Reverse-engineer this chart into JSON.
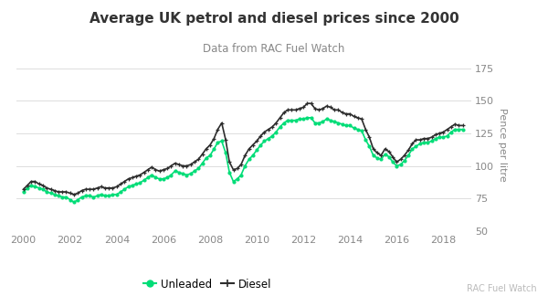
{
  "title": "Average UK petrol and diesel prices since 2000",
  "subtitle": "Data from RAC Fuel Watch",
  "ylabel": "Pence per litre",
  "watermark": "RAC Fuel Watch",
  "ylim": [
    50,
    182
  ],
  "yticks": [
    50,
    75,
    100,
    125,
    150,
    175
  ],
  "xlim": [
    1999.7,
    2019.2
  ],
  "xticks": [
    2000,
    2002,
    2004,
    2006,
    2008,
    2010,
    2012,
    2014,
    2016,
    2018
  ],
  "bg_color": "#ffffff",
  "grid_color": "#dddddd",
  "unleaded_color": "#00dd77",
  "diesel_color": "#2d2d2d",
  "unleaded_data": [
    [
      2000.0,
      80
    ],
    [
      2000.17,
      83
    ],
    [
      2000.33,
      85
    ],
    [
      2000.5,
      84
    ],
    [
      2000.67,
      83
    ],
    [
      2000.83,
      82
    ],
    [
      2001.0,
      80
    ],
    [
      2001.17,
      79
    ],
    [
      2001.33,
      78
    ],
    [
      2001.5,
      77
    ],
    [
      2001.67,
      76
    ],
    [
      2001.83,
      76
    ],
    [
      2002.0,
      74
    ],
    [
      2002.17,
      72
    ],
    [
      2002.33,
      74
    ],
    [
      2002.5,
      76
    ],
    [
      2002.67,
      77
    ],
    [
      2002.83,
      77
    ],
    [
      2003.0,
      76
    ],
    [
      2003.17,
      77
    ],
    [
      2003.33,
      78
    ],
    [
      2003.5,
      77
    ],
    [
      2003.67,
      77
    ],
    [
      2003.83,
      78
    ],
    [
      2004.0,
      78
    ],
    [
      2004.17,
      80
    ],
    [
      2004.33,
      82
    ],
    [
      2004.5,
      84
    ],
    [
      2004.67,
      85
    ],
    [
      2004.83,
      86
    ],
    [
      2005.0,
      87
    ],
    [
      2005.17,
      89
    ],
    [
      2005.33,
      91
    ],
    [
      2005.5,
      93
    ],
    [
      2005.67,
      91
    ],
    [
      2005.83,
      90
    ],
    [
      2006.0,
      90
    ],
    [
      2006.17,
      91
    ],
    [
      2006.33,
      93
    ],
    [
      2006.5,
      96
    ],
    [
      2006.67,
      95
    ],
    [
      2006.83,
      94
    ],
    [
      2007.0,
      93
    ],
    [
      2007.17,
      94
    ],
    [
      2007.33,
      96
    ],
    [
      2007.5,
      98
    ],
    [
      2007.67,
      102
    ],
    [
      2007.83,
      106
    ],
    [
      2008.0,
      108
    ],
    [
      2008.17,
      113
    ],
    [
      2008.33,
      118
    ],
    [
      2008.5,
      119
    ],
    [
      2008.67,
      110
    ],
    [
      2008.83,
      95
    ],
    [
      2009.0,
      88
    ],
    [
      2009.17,
      90
    ],
    [
      2009.33,
      93
    ],
    [
      2009.5,
      100
    ],
    [
      2009.67,
      105
    ],
    [
      2009.83,
      108
    ],
    [
      2010.0,
      112
    ],
    [
      2010.17,
      116
    ],
    [
      2010.33,
      119
    ],
    [
      2010.5,
      121
    ],
    [
      2010.67,
      123
    ],
    [
      2010.83,
      126
    ],
    [
      2011.0,
      130
    ],
    [
      2011.17,
      133
    ],
    [
      2011.33,
      135
    ],
    [
      2011.5,
      135
    ],
    [
      2011.67,
      135
    ],
    [
      2011.83,
      136
    ],
    [
      2012.0,
      136
    ],
    [
      2012.17,
      137
    ],
    [
      2012.33,
      137
    ],
    [
      2012.5,
      133
    ],
    [
      2012.67,
      133
    ],
    [
      2012.83,
      134
    ],
    [
      2013.0,
      136
    ],
    [
      2013.17,
      135
    ],
    [
      2013.33,
      134
    ],
    [
      2013.5,
      133
    ],
    [
      2013.67,
      132
    ],
    [
      2013.83,
      131
    ],
    [
      2014.0,
      131
    ],
    [
      2014.17,
      129
    ],
    [
      2014.33,
      128
    ],
    [
      2014.5,
      127
    ],
    [
      2014.67,
      120
    ],
    [
      2014.83,
      115
    ],
    [
      2015.0,
      108
    ],
    [
      2015.17,
      106
    ],
    [
      2015.33,
      105
    ],
    [
      2015.5,
      109
    ],
    [
      2015.67,
      107
    ],
    [
      2015.83,
      103
    ],
    [
      2016.0,
      100
    ],
    [
      2016.17,
      101
    ],
    [
      2016.33,
      104
    ],
    [
      2016.5,
      108
    ],
    [
      2016.67,
      113
    ],
    [
      2016.83,
      115
    ],
    [
      2017.0,
      117
    ],
    [
      2017.17,
      118
    ],
    [
      2017.33,
      118
    ],
    [
      2017.5,
      119
    ],
    [
      2017.67,
      121
    ],
    [
      2017.83,
      122
    ],
    [
      2018.0,
      122
    ],
    [
      2018.17,
      123
    ],
    [
      2018.33,
      126
    ],
    [
      2018.5,
      128
    ],
    [
      2018.67,
      128
    ],
    [
      2018.83,
      128
    ]
  ],
  "diesel_data": [
    [
      2000.0,
      82
    ],
    [
      2000.17,
      85
    ],
    [
      2000.33,
      88
    ],
    [
      2000.5,
      88
    ],
    [
      2000.67,
      86
    ],
    [
      2000.83,
      85
    ],
    [
      2001.0,
      83
    ],
    [
      2001.17,
      82
    ],
    [
      2001.33,
      81
    ],
    [
      2001.5,
      80
    ],
    [
      2001.67,
      80
    ],
    [
      2001.83,
      80
    ],
    [
      2002.0,
      79
    ],
    [
      2002.17,
      78
    ],
    [
      2002.33,
      79
    ],
    [
      2002.5,
      81
    ],
    [
      2002.67,
      82
    ],
    [
      2002.83,
      82
    ],
    [
      2003.0,
      82
    ],
    [
      2003.17,
      83
    ],
    [
      2003.33,
      84
    ],
    [
      2003.5,
      83
    ],
    [
      2003.67,
      83
    ],
    [
      2003.83,
      83
    ],
    [
      2004.0,
      84
    ],
    [
      2004.17,
      86
    ],
    [
      2004.33,
      88
    ],
    [
      2004.5,
      90
    ],
    [
      2004.67,
      91
    ],
    [
      2004.83,
      92
    ],
    [
      2005.0,
      93
    ],
    [
      2005.17,
      95
    ],
    [
      2005.33,
      97
    ],
    [
      2005.5,
      99
    ],
    [
      2005.67,
      97
    ],
    [
      2005.83,
      96
    ],
    [
      2006.0,
      97
    ],
    [
      2006.17,
      98
    ],
    [
      2006.33,
      100
    ],
    [
      2006.5,
      102
    ],
    [
      2006.67,
      101
    ],
    [
      2006.83,
      100
    ],
    [
      2007.0,
      100
    ],
    [
      2007.17,
      101
    ],
    [
      2007.33,
      103
    ],
    [
      2007.5,
      105
    ],
    [
      2007.67,
      109
    ],
    [
      2007.83,
      113
    ],
    [
      2008.0,
      116
    ],
    [
      2008.17,
      121
    ],
    [
      2008.33,
      128
    ],
    [
      2008.5,
      133
    ],
    [
      2008.67,
      120
    ],
    [
      2008.83,
      103
    ],
    [
      2009.0,
      97
    ],
    [
      2009.17,
      98
    ],
    [
      2009.33,
      101
    ],
    [
      2009.5,
      108
    ],
    [
      2009.67,
      113
    ],
    [
      2009.83,
      116
    ],
    [
      2010.0,
      119
    ],
    [
      2010.17,
      123
    ],
    [
      2010.33,
      126
    ],
    [
      2010.5,
      128
    ],
    [
      2010.67,
      130
    ],
    [
      2010.83,
      133
    ],
    [
      2011.0,
      137
    ],
    [
      2011.17,
      141
    ],
    [
      2011.33,
      143
    ],
    [
      2011.5,
      143
    ],
    [
      2011.67,
      143
    ],
    [
      2011.83,
      144
    ],
    [
      2012.0,
      145
    ],
    [
      2012.17,
      148
    ],
    [
      2012.33,
      148
    ],
    [
      2012.5,
      144
    ],
    [
      2012.67,
      143
    ],
    [
      2012.83,
      144
    ],
    [
      2013.0,
      146
    ],
    [
      2013.17,
      145
    ],
    [
      2013.33,
      143
    ],
    [
      2013.5,
      143
    ],
    [
      2013.67,
      141
    ],
    [
      2013.83,
      140
    ],
    [
      2014.0,
      140
    ],
    [
      2014.17,
      138
    ],
    [
      2014.33,
      137
    ],
    [
      2014.5,
      136
    ],
    [
      2014.67,
      128
    ],
    [
      2014.83,
      122
    ],
    [
      2015.0,
      113
    ],
    [
      2015.17,
      110
    ],
    [
      2015.33,
      108
    ],
    [
      2015.5,
      113
    ],
    [
      2015.67,
      111
    ],
    [
      2015.83,
      107
    ],
    [
      2016.0,
      103
    ],
    [
      2016.17,
      105
    ],
    [
      2016.33,
      108
    ],
    [
      2016.5,
      112
    ],
    [
      2016.67,
      117
    ],
    [
      2016.83,
      120
    ],
    [
      2017.0,
      120
    ],
    [
      2017.17,
      121
    ],
    [
      2017.33,
      121
    ],
    [
      2017.5,
      122
    ],
    [
      2017.67,
      124
    ],
    [
      2017.83,
      125
    ],
    [
      2018.0,
      126
    ],
    [
      2018.17,
      128
    ],
    [
      2018.33,
      130
    ],
    [
      2018.5,
      132
    ],
    [
      2018.67,
      131
    ],
    [
      2018.83,
      131
    ]
  ],
  "title_fontsize": 11,
  "subtitle_fontsize": 8.5,
  "axis_fontsize": 8,
  "legend_fontsize": 8.5,
  "watermark_fontsize": 7
}
